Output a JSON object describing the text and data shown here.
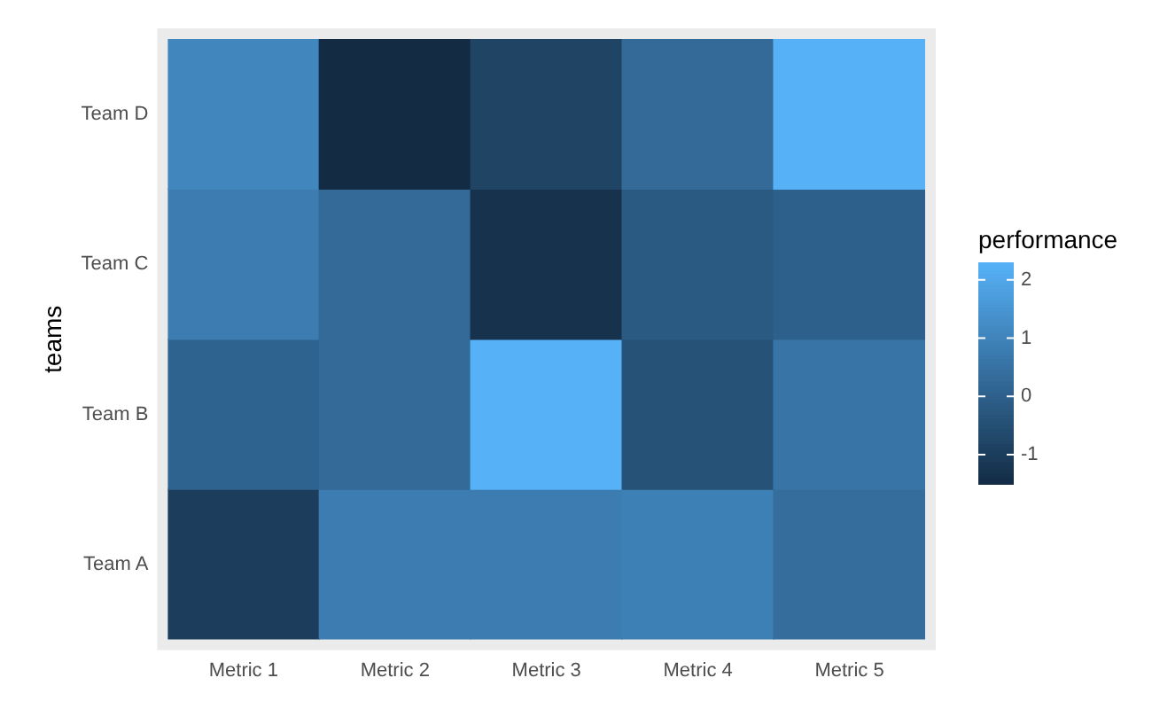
{
  "chart_data": {
    "type": "heatmap",
    "ylabel": "teams",
    "clabel": "performance",
    "categories": [
      "Metric 1",
      "Metric 2",
      "Metric 3",
      "Metric 4",
      "Metric 5"
    ],
    "y_categories": [
      "Team D",
      "Team C",
      "Team B",
      "Team A"
    ],
    "cells": [
      [
        1.1,
        -1.5,
        -0.8,
        0.3,
        2.3
      ],
      [
        0.8,
        0.3,
        -1.3,
        -0.2,
        0
      ],
      [
        0.1,
        0.3,
        2.3,
        -0.4,
        0.6
      ],
      [
        -1,
        0.8,
        0.8,
        0.9,
        0.4
      ]
    ],
    "clim": [
      -1.5,
      2.3
    ],
    "cticks": [
      -1,
      0,
      1,
      2
    ]
  }
}
